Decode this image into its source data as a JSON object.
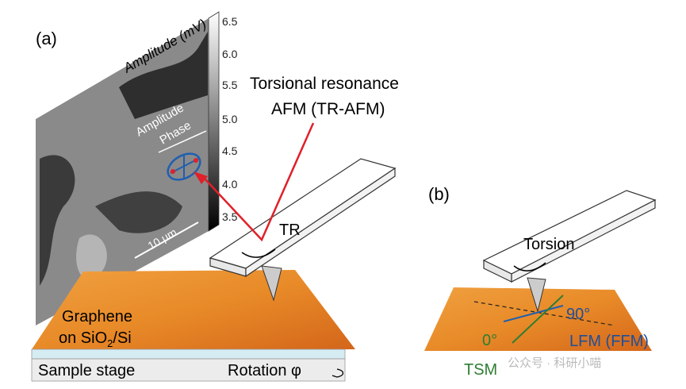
{
  "panel_a": {
    "label": "(a)",
    "colorbar": {
      "title": "Amplitude (mV)",
      "ticks": [
        "6.5",
        "6.0",
        "5.5",
        "5.0",
        "4.5",
        "4.0",
        "3.5"
      ]
    },
    "technique": [
      "Torsional resonance",
      "AFM (TR-AFM)"
    ],
    "ellipse_labels": [
      "Amplitude",
      "Phase"
    ],
    "motion": "TR",
    "scale_bar": "10 μm",
    "sample": {
      "line1": "Graphene",
      "line2": [
        "on SiO",
        "2",
        "/Si"
      ]
    },
    "stage": "Sample stage",
    "rotation": "Rotation φ"
  },
  "panel_b": {
    "label": "(b)",
    "motion": "Torsion",
    "angle_90": "90°",
    "angle_0": "0°",
    "mode_lfm": "LFM (FFM)",
    "mode_tsm": "TSM"
  },
  "watermark": "公众号 · 科研小喵"
}
